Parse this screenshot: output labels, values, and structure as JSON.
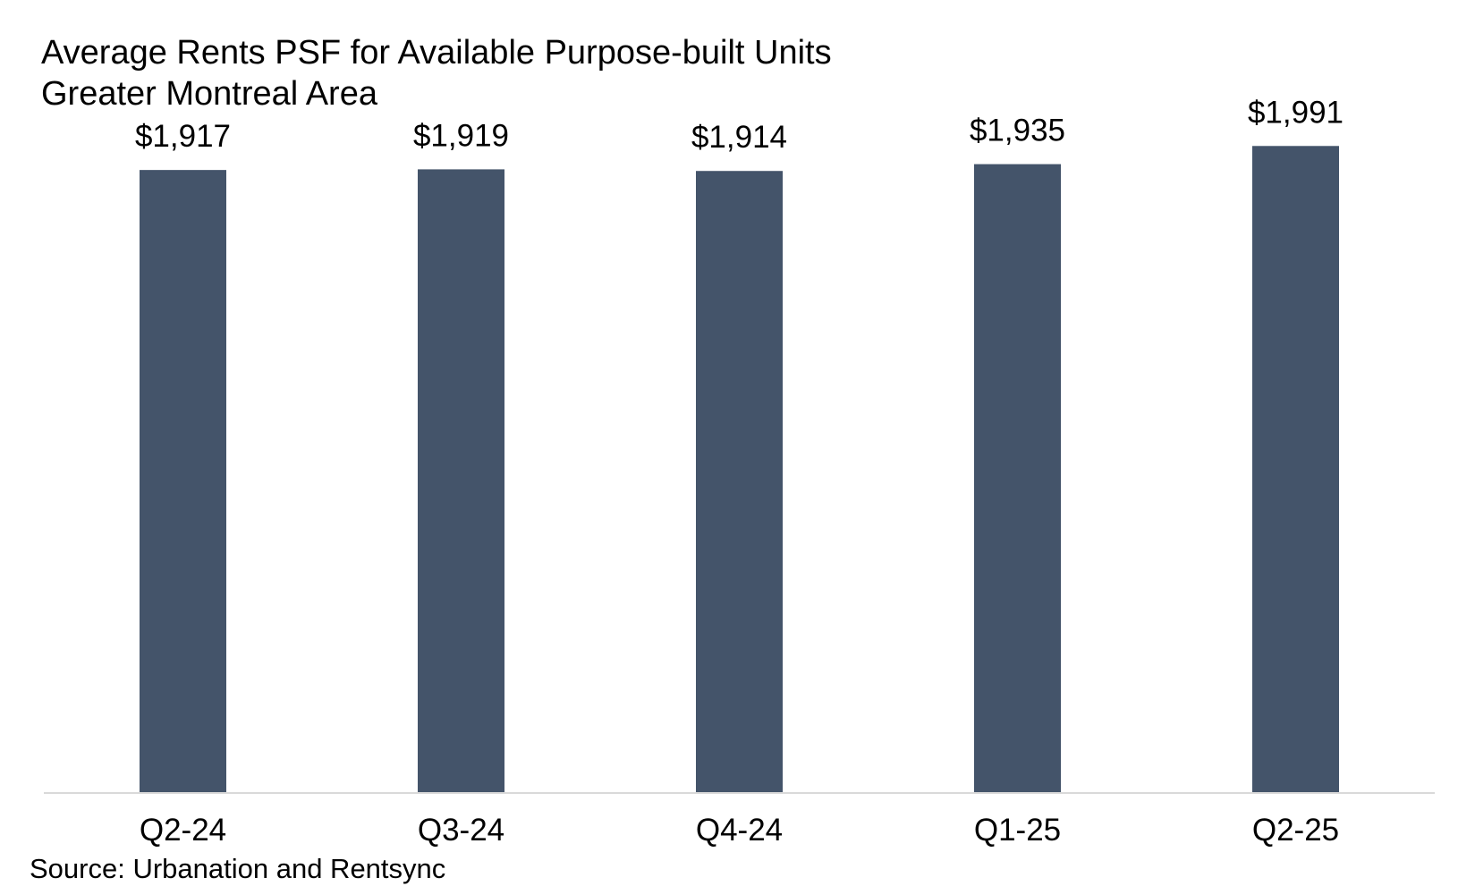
{
  "chart_data": {
    "type": "bar",
    "title": "Average Rents PSF for Available Purpose-built Units",
    "subtitle": "Greater Montreal Area",
    "categories": [
      "Q2-24",
      "Q3-24",
      "Q4-24",
      "Q1-25",
      "Q2-25"
    ],
    "values": [
      1917,
      1919,
      1914,
      1935,
      1991
    ],
    "data_labels": [
      "$1,917",
      "$1,919",
      "$1,914",
      "$1,935",
      "$1,991"
    ],
    "xlabel": "",
    "ylabel": "",
    "ylim": [
      0,
      2000
    ],
    "grid": false,
    "legend": "none",
    "bar_color": "#44546A",
    "axis_color": "#D9D9D9",
    "source": "Source: Urbanation and Rentsync"
  }
}
